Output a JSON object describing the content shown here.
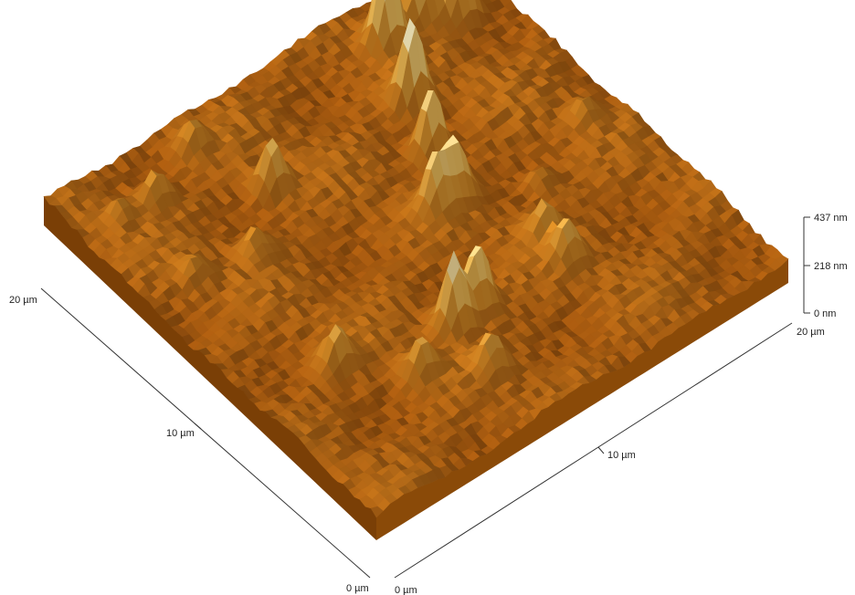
{
  "chart_data": {
    "type": "surface",
    "colormap": [
      "#6e3605",
      "#a85b10",
      "#d58a25",
      "#f1c05c",
      "#fff3c2"
    ],
    "axes": {
      "x": {
        "ticks": [
          {
            "key": "x0",
            "value": 0,
            "label": "0 µm"
          },
          {
            "key": "x10",
            "value": 10,
            "label": "10 µm"
          },
          {
            "key": "x20",
            "value": 20,
            "label": "20 µm"
          }
        ]
      },
      "y": {
        "ticks": [
          {
            "key": "y0",
            "value": 0,
            "label": "0 µm"
          },
          {
            "key": "y10",
            "value": 10,
            "label": "10 µm"
          },
          {
            "key": "y20",
            "value": 20,
            "label": "20 µm"
          }
        ]
      },
      "z": {
        "range": [
          0,
          437
        ],
        "ticks": [
          {
            "key": "z0",
            "value": 0,
            "label": "0 nm"
          },
          {
            "key": "z218",
            "value": 218,
            "label": "218 nm"
          },
          {
            "key": "z437",
            "value": 437,
            "label": "437 nm"
          }
        ]
      }
    },
    "peaks": [
      {
        "x": 15.0,
        "y": 18.0,
        "h": 437
      },
      {
        "x": 16.9,
        "y": 18.3,
        "h": 434
      },
      {
        "x": 18.1,
        "y": 17.4,
        "h": 350
      },
      {
        "x": 14.0,
        "y": 15.2,
        "h": 418
      },
      {
        "x": 13.0,
        "y": 12.8,
        "h": 350
      },
      {
        "x": 8.3,
        "y": 5.6,
        "h": 375
      },
      {
        "x": 9.6,
        "y": 5.8,
        "h": 345
      },
      {
        "x": 11.3,
        "y": 10.4,
        "h": 280
      },
      {
        "x": 12.3,
        "y": 10.5,
        "h": 285
      },
      {
        "x": 7.2,
        "y": 15.2,
        "h": 265
      },
      {
        "x": 3.6,
        "y": 6.9,
        "h": 215
      },
      {
        "x": 3.4,
        "y": 17.5,
        "h": 190
      },
      {
        "x": 13.6,
        "y": 5.4,
        "h": 215
      },
      {
        "x": 13.7,
        "y": 6.9,
        "h": 175
      },
      {
        "x": 15.2,
        "y": 8.9,
        "h": 125
      },
      {
        "x": 18.5,
        "y": 10.4,
        "h": 120
      },
      {
        "x": 6.1,
        "y": 18.6,
        "h": 160
      },
      {
        "x": 5.8,
        "y": 4.5,
        "h": 200
      },
      {
        "x": 8.0,
        "y": 3.0,
        "h": 185
      },
      {
        "x": 4.7,
        "y": 13.1,
        "h": 150
      },
      {
        "x": 2.2,
        "y": 13.6,
        "h": 120
      },
      {
        "x": 1.8,
        "y": 17.6,
        "h": 120
      }
    ]
  }
}
